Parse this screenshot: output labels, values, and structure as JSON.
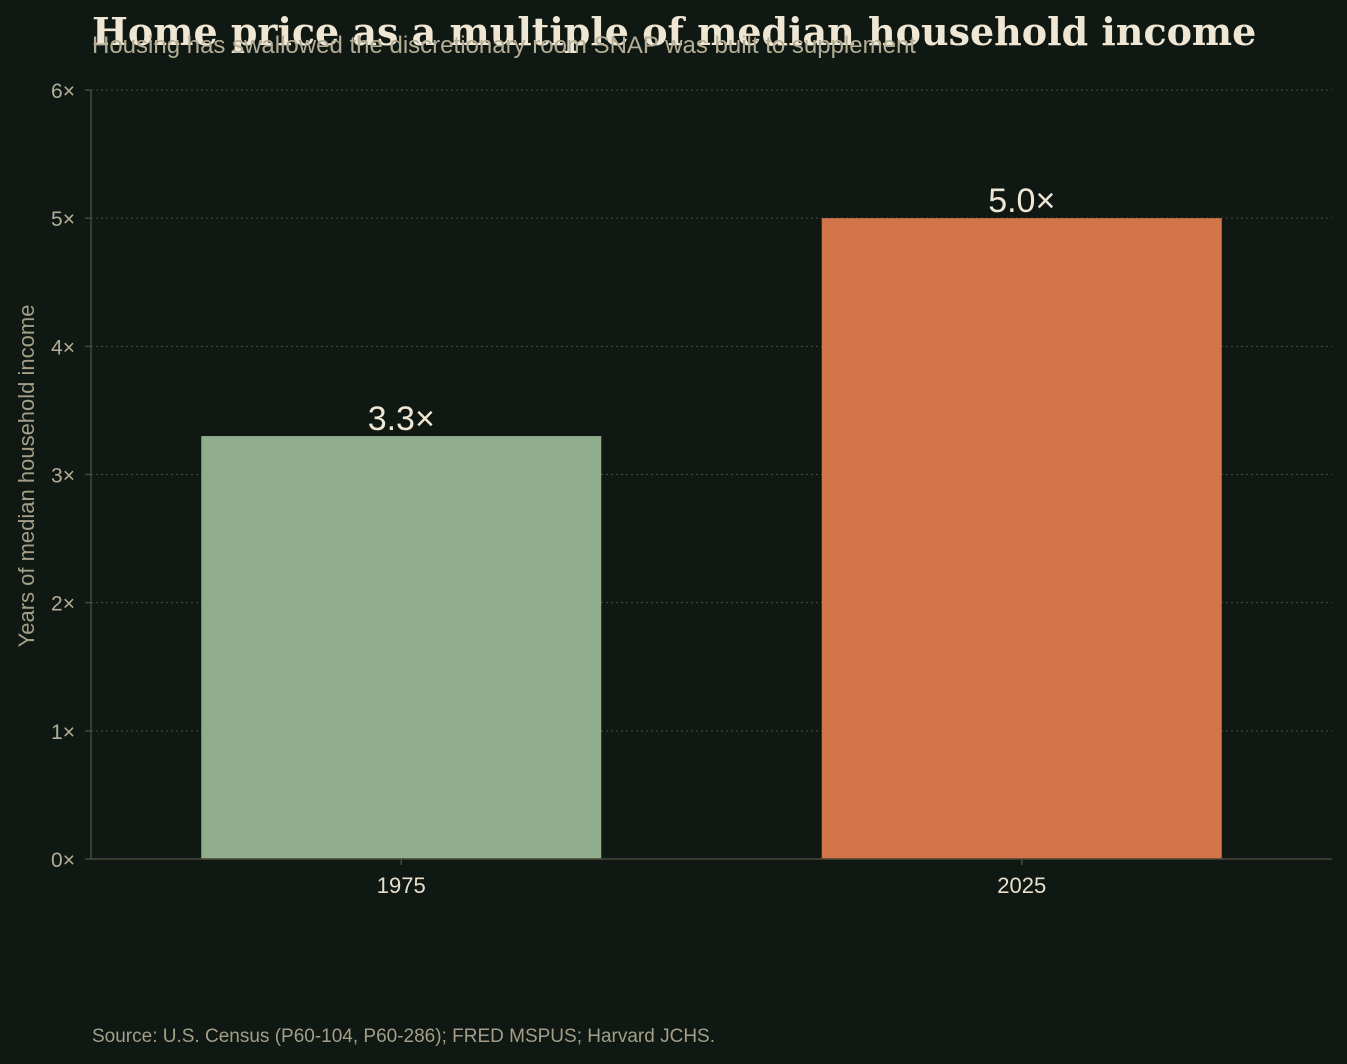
{
  "chart_data": {
    "type": "bar",
    "title": "Home price as a multiple of median household income",
    "subtitle": "Housing has swallowed the discretionary room SNAP was built to supplement",
    "ylabel": "Years of median household income",
    "xlabel": "",
    "categories": [
      "1975",
      "2025"
    ],
    "values": [
      3.3,
      5.0
    ],
    "value_labels": [
      "3.3×",
      "5.0×"
    ],
    "bar_colors": [
      "#90ad8c",
      "#d3754a"
    ],
    "ylim": [
      0,
      6
    ],
    "yticks": [
      0,
      1,
      2,
      3,
      4,
      5,
      6
    ],
    "ytick_labels": [
      "0×",
      "1×",
      "2×",
      "3×",
      "4×",
      "5×",
      "6×"
    ],
    "grid": true,
    "legend": "none",
    "source": "Source: U.S. Census (P60-104, P60-286); FRED MSPUS; Harvard JCHS."
  },
  "colors": {
    "background": "#0f1812",
    "axis": "#4a4838",
    "grid": "#4a4c40"
  }
}
